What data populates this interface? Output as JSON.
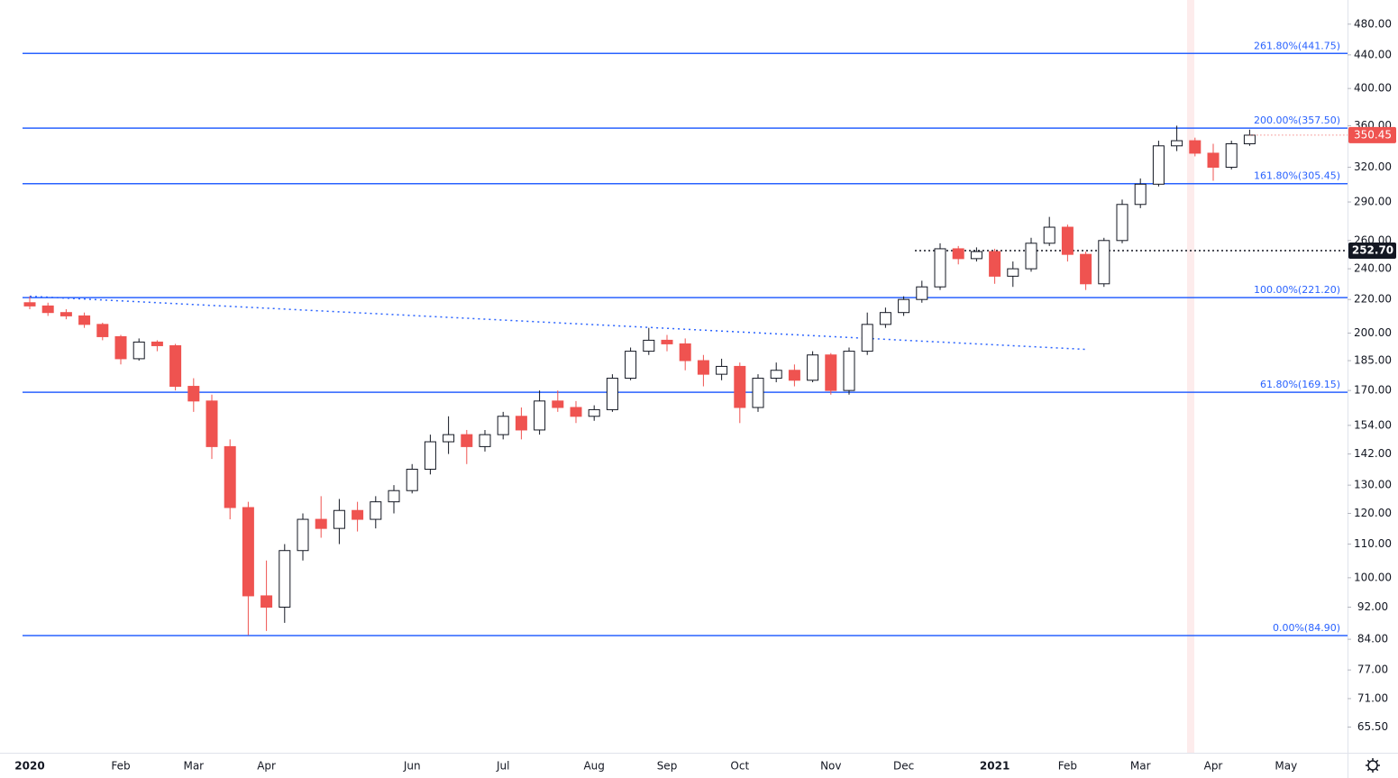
{
  "chart_data": {
    "type": "candlestick",
    "log_scale": true,
    "categories": [
      "2020",
      null,
      null,
      null,
      null,
      "Feb",
      null,
      null,
      null,
      "Mar",
      null,
      null,
      null,
      "Apr",
      null,
      null,
      null,
      null,
      null,
      null,
      null,
      "Jun",
      null,
      null,
      null,
      null,
      "Jul",
      null,
      null,
      null,
      null,
      "Aug",
      null,
      null,
      null,
      "Sep",
      null,
      null,
      null,
      "Oct",
      null,
      null,
      null,
      null,
      "Nov",
      null,
      null,
      null,
      "Dec",
      null,
      null,
      null,
      null,
      "2021",
      null,
      null,
      null,
      "Feb",
      null,
      null,
      null,
      "Mar",
      null,
      null,
      null,
      "Apr",
      null,
      null,
      null,
      "May",
      null
    ],
    "open": [
      218,
      216,
      212,
      210,
      205,
      198,
      186,
      195,
      193,
      172,
      165,
      145,
      122,
      95,
      92,
      108,
      118,
      115,
      121,
      118,
      124,
      128,
      136,
      147,
      150,
      145,
      150,
      158,
      152,
      165,
      162,
      158,
      161,
      176,
      190,
      196,
      194,
      185,
      178,
      182,
      162,
      176,
      180,
      175,
      188,
      170,
      190,
      205,
      212,
      220,
      228,
      254,
      247,
      252,
      235,
      240,
      258,
      270,
      250,
      230,
      260,
      288,
      305,
      340,
      345,
      333,
      320,
      342,
      null,
      null,
      null
    ],
    "high": [
      222,
      218,
      214,
      212,
      206,
      199,
      197,
      196,
      194,
      176,
      168,
      148,
      124,
      105,
      110,
      120,
      126,
      125,
      124,
      126,
      130,
      138,
      150,
      158,
      152,
      152,
      160,
      162,
      170,
      170,
      165,
      163,
      178,
      192,
      203,
      199,
      197,
      188,
      186,
      184,
      178,
      184,
      183,
      190,
      189,
      192,
      212,
      215,
      222,
      232,
      258,
      256,
      255,
      254,
      245,
      262,
      278,
      272,
      252,
      262,
      292,
      310,
      345,
      360,
      348,
      342,
      345,
      356,
      null,
      null,
      null
    ],
    "low": [
      214,
      210,
      208,
      203,
      196,
      183,
      185,
      190,
      170,
      160,
      140,
      118,
      85,
      86,
      88,
      105,
      112,
      110,
      114,
      115,
      120,
      127,
      134,
      142,
      138,
      143,
      148,
      148,
      150,
      160,
      155,
      156,
      160,
      175,
      188,
      190,
      180,
      172,
      175,
      155,
      160,
      174,
      172,
      174,
      168,
      168,
      188,
      203,
      210,
      218,
      226,
      243,
      245,
      230,
      228,
      238,
      256,
      245,
      226,
      228,
      258,
      285,
      303,
      335,
      330,
      308,
      318,
      340,
      null,
      null,
      null
    ],
    "close": [
      216,
      212,
      210,
      205,
      198,
      186,
      195,
      193,
      172,
      165,
      145,
      122,
      95,
      92,
      108,
      118,
      115,
      121,
      118,
      124,
      128,
      136,
      147,
      150,
      145,
      150,
      158,
      152,
      165,
      162,
      158,
      161,
      176,
      190,
      196,
      194,
      185,
      178,
      182,
      162,
      176,
      180,
      175,
      188,
      170,
      190,
      205,
      212,
      220,
      228,
      254,
      247,
      252,
      235,
      240,
      258,
      270,
      250,
      230,
      260,
      288,
      305,
      340,
      345,
      333,
      320,
      342,
      350.45,
      null,
      null,
      null
    ],
    "up_color": "#ffffff",
    "down_color": "#ef5350",
    "outline_color": "#131722",
    "ylim": [
      60.9,
      514
    ],
    "yticks": [
      {
        "value": 480,
        "label": "480.00"
      },
      {
        "value": 440,
        "label": "440.00"
      },
      {
        "value": 400,
        "label": "400.00"
      },
      {
        "value": 360,
        "label": "360.00"
      },
      {
        "value": 320,
        "label": "320.00"
      },
      {
        "value": 290,
        "label": "290.00"
      },
      {
        "value": 260,
        "label": "260.00"
      },
      {
        "value": 240,
        "label": "240.00"
      },
      {
        "value": 220,
        "label": "220.00"
      },
      {
        "value": 200,
        "label": "200.00"
      },
      {
        "value": 185,
        "label": "185.00"
      },
      {
        "value": 170,
        "label": "170.00"
      },
      {
        "value": 154,
        "label": "154.00"
      },
      {
        "value": 142,
        "label": "142.00"
      },
      {
        "value": 130,
        "label": "130.00"
      },
      {
        "value": 120,
        "label": "120.00"
      },
      {
        "value": 110,
        "label": "110.00"
      },
      {
        "value": 100,
        "label": "100.00"
      },
      {
        "value": 92,
        "label": "92.00"
      },
      {
        "value": 84,
        "label": "84.00"
      },
      {
        "value": 77,
        "label": "77.00"
      },
      {
        "value": 71,
        "label": "71.00"
      },
      {
        "value": 65.5,
        "label": "65.50"
      }
    ],
    "fib_color": "#2962ff",
    "fib_levels": [
      {
        "value": 441.75,
        "label": "261.80%(441.75)"
      },
      {
        "value": 357.5,
        "label": "200.00%(357.50)"
      },
      {
        "value": 305.45,
        "label": "161.80%(305.45)"
      },
      {
        "value": 221.2,
        "label": "100.00%(221.20)"
      },
      {
        "value": 169.15,
        "label": "61.80%(169.15)"
      },
      {
        "value": 84.9,
        "label": "0.00%(84.90)"
      }
    ],
    "trend_line": {
      "start": [
        0,
        222
      ],
      "end": [
        58,
        191
      ]
    },
    "price_line": {
      "value": 252.7,
      "label": "252.70"
    },
    "last_price": 350.45
  }
}
